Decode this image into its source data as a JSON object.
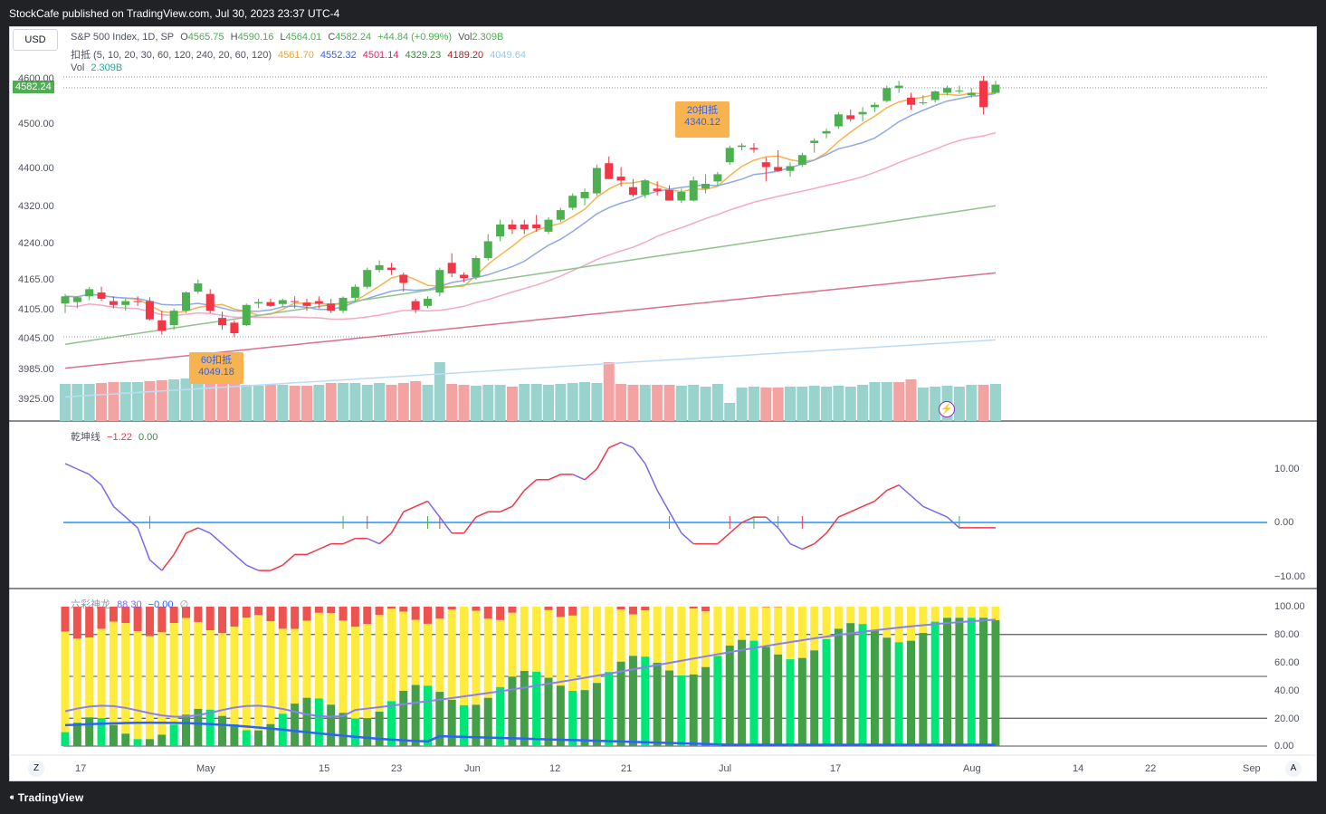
{
  "header": {
    "published": "StockCafe published on TradingView.com, Jul 30, 2023 23:37 UTC-4"
  },
  "footer": {
    "brand": "TradingView"
  },
  "currency_button": "USD",
  "legend": {
    "symbol": "S&P 500 Index, 1D, SP",
    "open_label": "O",
    "open": "4565.75",
    "high_label": "H",
    "high": "4590.16",
    "low_label": "L",
    "low": "4564.01",
    "close_label": "C",
    "close": "4582.24",
    "change": "+44.84 (+0.99%)",
    "vol_label": "Vol",
    "vol": "2.309B",
    "ma_name": "扣抵 (5, 10, 20, 30, 60, 120, 240, 20, 60, 120)",
    "ma_values": [
      "4561.70",
      "4552.32",
      "4501.14",
      "4329.23",
      "4189.20",
      "4049.64"
    ],
    "vol_row_label": "Vol",
    "vol_row_value": "2.309B"
  },
  "price_badge": "4582.24",
  "price_axis": [
    "4600.00",
    "4500.00",
    "4400.00",
    "4320.00",
    "4240.00",
    "4165.00",
    "4105.00",
    "4045.00",
    "3985.00",
    "3925.00"
  ],
  "osc_axis": [
    "10.00",
    "0.00",
    "−10.00"
  ],
  "lc_axis": [
    "100.00",
    "80.00",
    "60.00",
    "40.00",
    "20.00",
    "0.00"
  ],
  "time_axis": [
    "17",
    "May",
    "15",
    "23",
    "Jun",
    "12",
    "21",
    "Jul",
    "17",
    "Aug",
    "14",
    "22",
    "Sep"
  ],
  "indicator_osc": {
    "name": "乾坤线",
    "v1": "−1.22",
    "v2": "0.00"
  },
  "indicator_lc": {
    "name": "六彩神龙",
    "v1": "88.30",
    "v2": "−0.00",
    "v3": "∅"
  },
  "callouts": [
    {
      "label": "20扣抵",
      "value": "4340.12"
    },
    {
      "label": "60扣抵",
      "value": "4049.18"
    }
  ],
  "buttons": {
    "z": "Z",
    "a": "A"
  },
  "colors": {
    "up": "#4caf50",
    "down": "#f23645",
    "vol_up": "#9ad3cd",
    "vol_down": "#f4a3a3",
    "yellow": "#ffeb3b",
    "green_dark": "#43a047",
    "green_light": "#00e676",
    "red_bar": "#ef5350"
  },
  "chart_data": {
    "type": "candlestick",
    "ohlc": [
      [
        4125,
        4145,
        4105,
        4140
      ],
      [
        4128,
        4140,
        4115,
        4138
      ],
      [
        4140,
        4160,
        4132,
        4155
      ],
      [
        4148,
        4160,
        4130,
        4135
      ],
      [
        4130,
        4140,
        4115,
        4122
      ],
      [
        4122,
        4135,
        4110,
        4130
      ],
      [
        4130,
        4140,
        4120,
        4128
      ],
      [
        4130,
        4138,
        4090,
        4092
      ],
      [
        4090,
        4110,
        4060,
        4068
      ],
      [
        4080,
        4115,
        4070,
        4110
      ],
      [
        4110,
        4150,
        4105,
        4148
      ],
      [
        4150,
        4175,
        4145,
        4167
      ],
      [
        4145,
        4155,
        4105,
        4110
      ],
      [
        4095,
        4108,
        4070,
        4080
      ],
      [
        4085,
        4090,
        4055,
        4063
      ],
      [
        4080,
        4125,
        4078,
        4122
      ],
      [
        4125,
        4135,
        4115,
        4128
      ],
      [
        4128,
        4135,
        4118,
        4120
      ],
      [
        4124,
        4135,
        4118,
        4132
      ],
      [
        4130,
        4140,
        4115,
        4128
      ],
      [
        4127,
        4135,
        4110,
        4120
      ],
      [
        4130,
        4140,
        4115,
        4125
      ],
      [
        4125,
        4135,
        4105,
        4110
      ],
      [
        4110,
        4140,
        4105,
        4137
      ],
      [
        4137,
        4165,
        4130,
        4160
      ],
      [
        4160,
        4200,
        4155,
        4195
      ],
      [
        4195,
        4215,
        4190,
        4205
      ],
      [
        4200,
        4210,
        4185,
        4195
      ],
      [
        4185,
        4190,
        4150,
        4168
      ],
      [
        4130,
        4135,
        4105,
        4112
      ],
      [
        4120,
        4140,
        4115,
        4135
      ],
      [
        4148,
        4200,
        4140,
        4195
      ],
      [
        4210,
        4230,
        4180,
        4188
      ],
      [
        4185,
        4190,
        4170,
        4178
      ],
      [
        4180,
        4225,
        4175,
        4220
      ],
      [
        4220,
        4270,
        4215,
        4255
      ],
      [
        4265,
        4300,
        4255,
        4290
      ],
      [
        4290,
        4300,
        4270,
        4280
      ],
      [
        4290,
        4300,
        4270,
        4280
      ],
      [
        4290,
        4310,
        4275,
        4282
      ],
      [
        4275,
        4305,
        4270,
        4300
      ],
      [
        4300,
        4325,
        4295,
        4320
      ],
      [
        4325,
        4355,
        4320,
        4350
      ],
      [
        4345,
        4365,
        4330,
        4358
      ],
      [
        4355,
        4415,
        4350,
        4408
      ],
      [
        4418,
        4432,
        4385,
        4385
      ],
      [
        4390,
        4410,
        4370,
        4382
      ],
      [
        4368,
        4385,
        4348,
        4352
      ],
      [
        4352,
        4385,
        4345,
        4382
      ],
      [
        4365,
        4380,
        4350,
        4360
      ],
      [
        4362,
        4372,
        4340,
        4340
      ],
      [
        4340,
        4365,
        4335,
        4358
      ],
      [
        4340,
        4390,
        4338,
        4382
      ],
      [
        4365,
        4395,
        4355,
        4375
      ],
      [
        4380,
        4400,
        4370,
        4395
      ],
      [
        4420,
        4455,
        4415,
        4450
      ],
      [
        4452,
        4460,
        4445,
        4455
      ],
      [
        4450,
        4460,
        4440,
        4447
      ],
      [
        4420,
        4430,
        4380,
        4410
      ],
      [
        4410,
        4445,
        4400,
        4402
      ],
      [
        4402,
        4420,
        4390,
        4412
      ],
      [
        4415,
        4440,
        4410,
        4435
      ],
      [
        4460,
        4470,
        4440,
        4465
      ],
      [
        4480,
        4490,
        4470,
        4485
      ],
      [
        4495,
        4525,
        4490,
        4520
      ],
      [
        4518,
        4530,
        4505,
        4510
      ],
      [
        4520,
        4535,
        4505,
        4525
      ],
      [
        4535,
        4545,
        4525,
        4540
      ],
      [
        4548,
        4580,
        4545,
        4575
      ],
      [
        4575,
        4590,
        4565,
        4580
      ],
      [
        4555,
        4565,
        4530,
        4540
      ],
      [
        4545,
        4560,
        4540,
        4545
      ],
      [
        4550,
        4570,
        4545,
        4568
      ],
      [
        4565,
        4580,
        4560,
        4575
      ],
      [
        4570,
        4580,
        4563,
        4570
      ],
      [
        4560,
        4575,
        4555,
        4565
      ],
      [
        4590,
        4600,
        4520,
        4535
      ],
      [
        4565,
        4590,
        4564,
        4582
      ]
    ],
    "volume_up": [
      true,
      true,
      true,
      false,
      false,
      true,
      true,
      false,
      false,
      true,
      true,
      true,
      false,
      false,
      false,
      true,
      true,
      false,
      true,
      false,
      false,
      true,
      false,
      true,
      true,
      true,
      true,
      false,
      false,
      false,
      true,
      true,
      false,
      false,
      true,
      true,
      true,
      false,
      true,
      true,
      true,
      true,
      true,
      true,
      true,
      false,
      false,
      false,
      true,
      false,
      false,
      true,
      true,
      true,
      true,
      true,
      true,
      true,
      false,
      false,
      true,
      true,
      true,
      true,
      true,
      true,
      true,
      true,
      true,
      false,
      false,
      true,
      true,
      true,
      true,
      true,
      false,
      true
    ],
    "volume": [
      0.82,
      0.82,
      0.82,
      0.84,
      0.86,
      0.86,
      0.86,
      0.88,
      0.9,
      0.92,
      0.94,
      0.92,
      0.9,
      0.88,
      0.86,
      0.8,
      0.78,
      0.82,
      0.8,
      0.78,
      0.78,
      0.8,
      0.84,
      0.84,
      0.84,
      0.8,
      0.84,
      0.8,
      0.84,
      0.88,
      0.8,
      1.3,
      0.82,
      0.8,
      0.78,
      0.8,
      0.8,
      0.76,
      0.82,
      0.82,
      0.8,
      0.82,
      0.84,
      0.86,
      0.84,
      1.3,
      0.82,
      0.8,
      0.8,
      0.8,
      0.8,
      0.78,
      0.8,
      0.76,
      0.82,
      0.4,
      0.74,
      0.76,
      0.74,
      0.74,
      0.76,
      0.76,
      0.78,
      0.76,
      0.78,
      0.76,
      0.8,
      0.86,
      0.86,
      0.86,
      0.92,
      0.74,
      0.76,
      0.78,
      0.76,
      0.8,
      0.8,
      0.82
    ],
    "osc_values": [
      11,
      10,
      9,
      7,
      3,
      1,
      -1,
      -7,
      -9,
      -6,
      -2,
      -1,
      -2,
      -4,
      -6,
      -8,
      -9,
      -9,
      -8,
      -6,
      -6,
      -5,
      -4,
      -4,
      -3,
      -3,
      -4,
      -2,
      2,
      3,
      4,
      1,
      -2,
      -2,
      1,
      2,
      2,
      3,
      6,
      8,
      8,
      9,
      9,
      8,
      10,
      14,
      15,
      14,
      11,
      6,
      2,
      -2,
      -4,
      -4,
      -4,
      -2,
      0,
      1,
      1,
      -1,
      -4,
      -5,
      -4,
      -2,
      1,
      2,
      3,
      4,
      6,
      7,
      5,
      3,
      2,
      1,
      -1,
      -1,
      -1,
      -1
    ]
  }
}
